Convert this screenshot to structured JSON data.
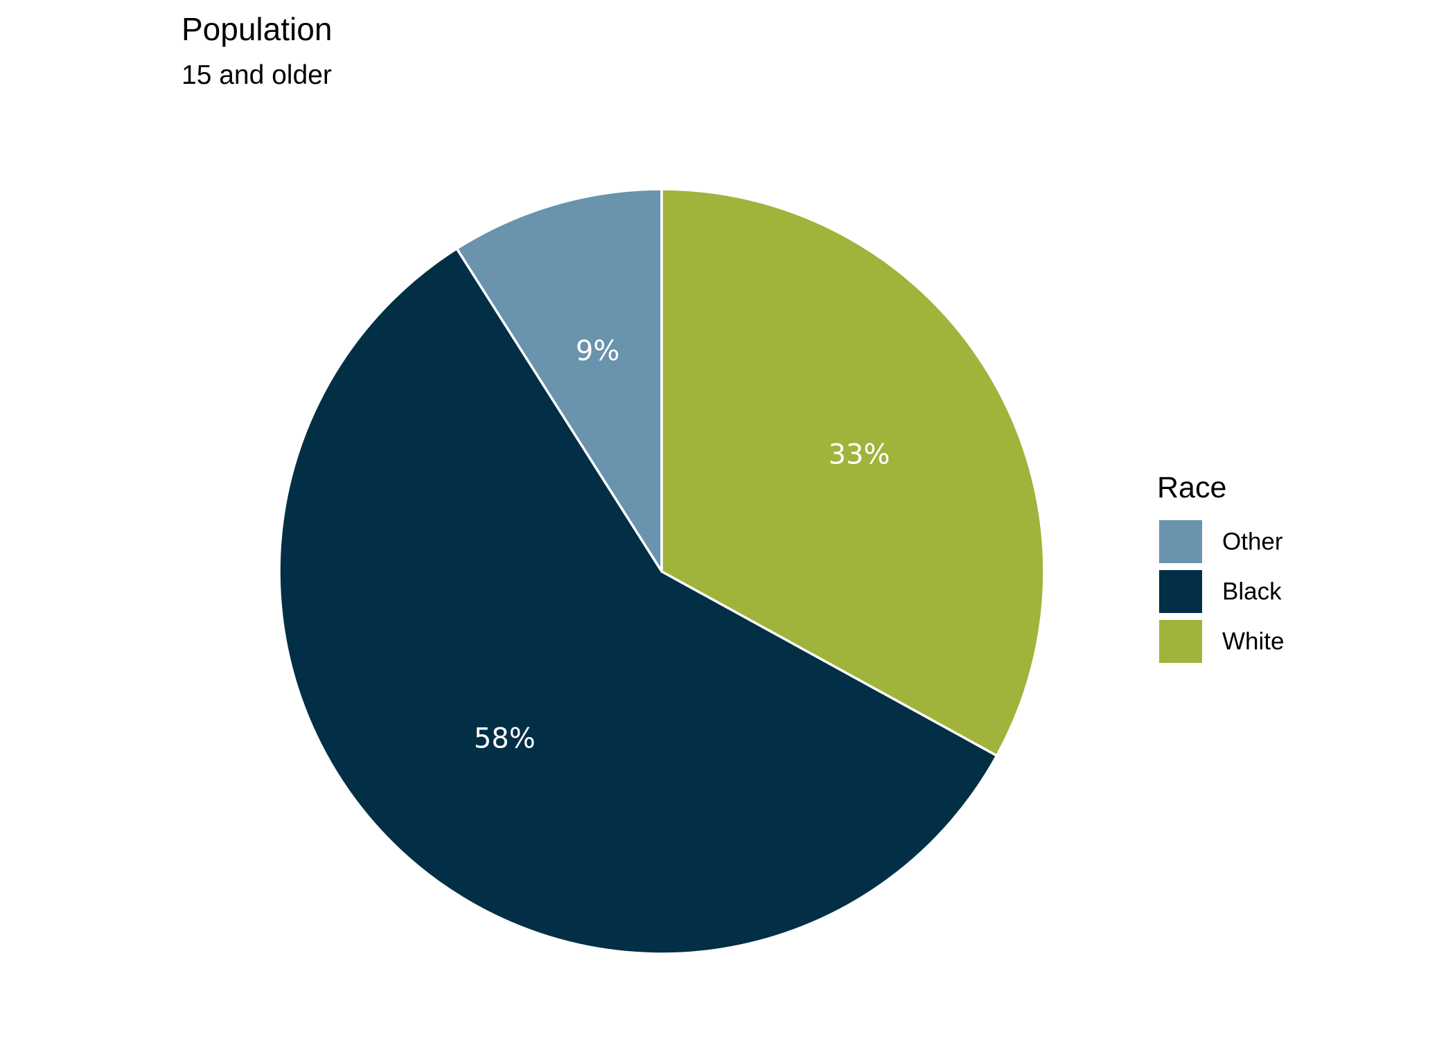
{
  "chart_data": {
    "type": "pie",
    "title": "Population",
    "subtitle": "15 and older",
    "legend_title": "Race",
    "legend_position": "right",
    "slices": [
      {
        "name": "Other",
        "value": 9,
        "label": "9%",
        "color": "#6A93AD"
      },
      {
        "name": "Black",
        "value": 58,
        "label": "58%",
        "color": "#022F46"
      },
      {
        "name": "White",
        "value": 33,
        "label": "33%",
        "color": "#A0B33B"
      }
    ]
  }
}
